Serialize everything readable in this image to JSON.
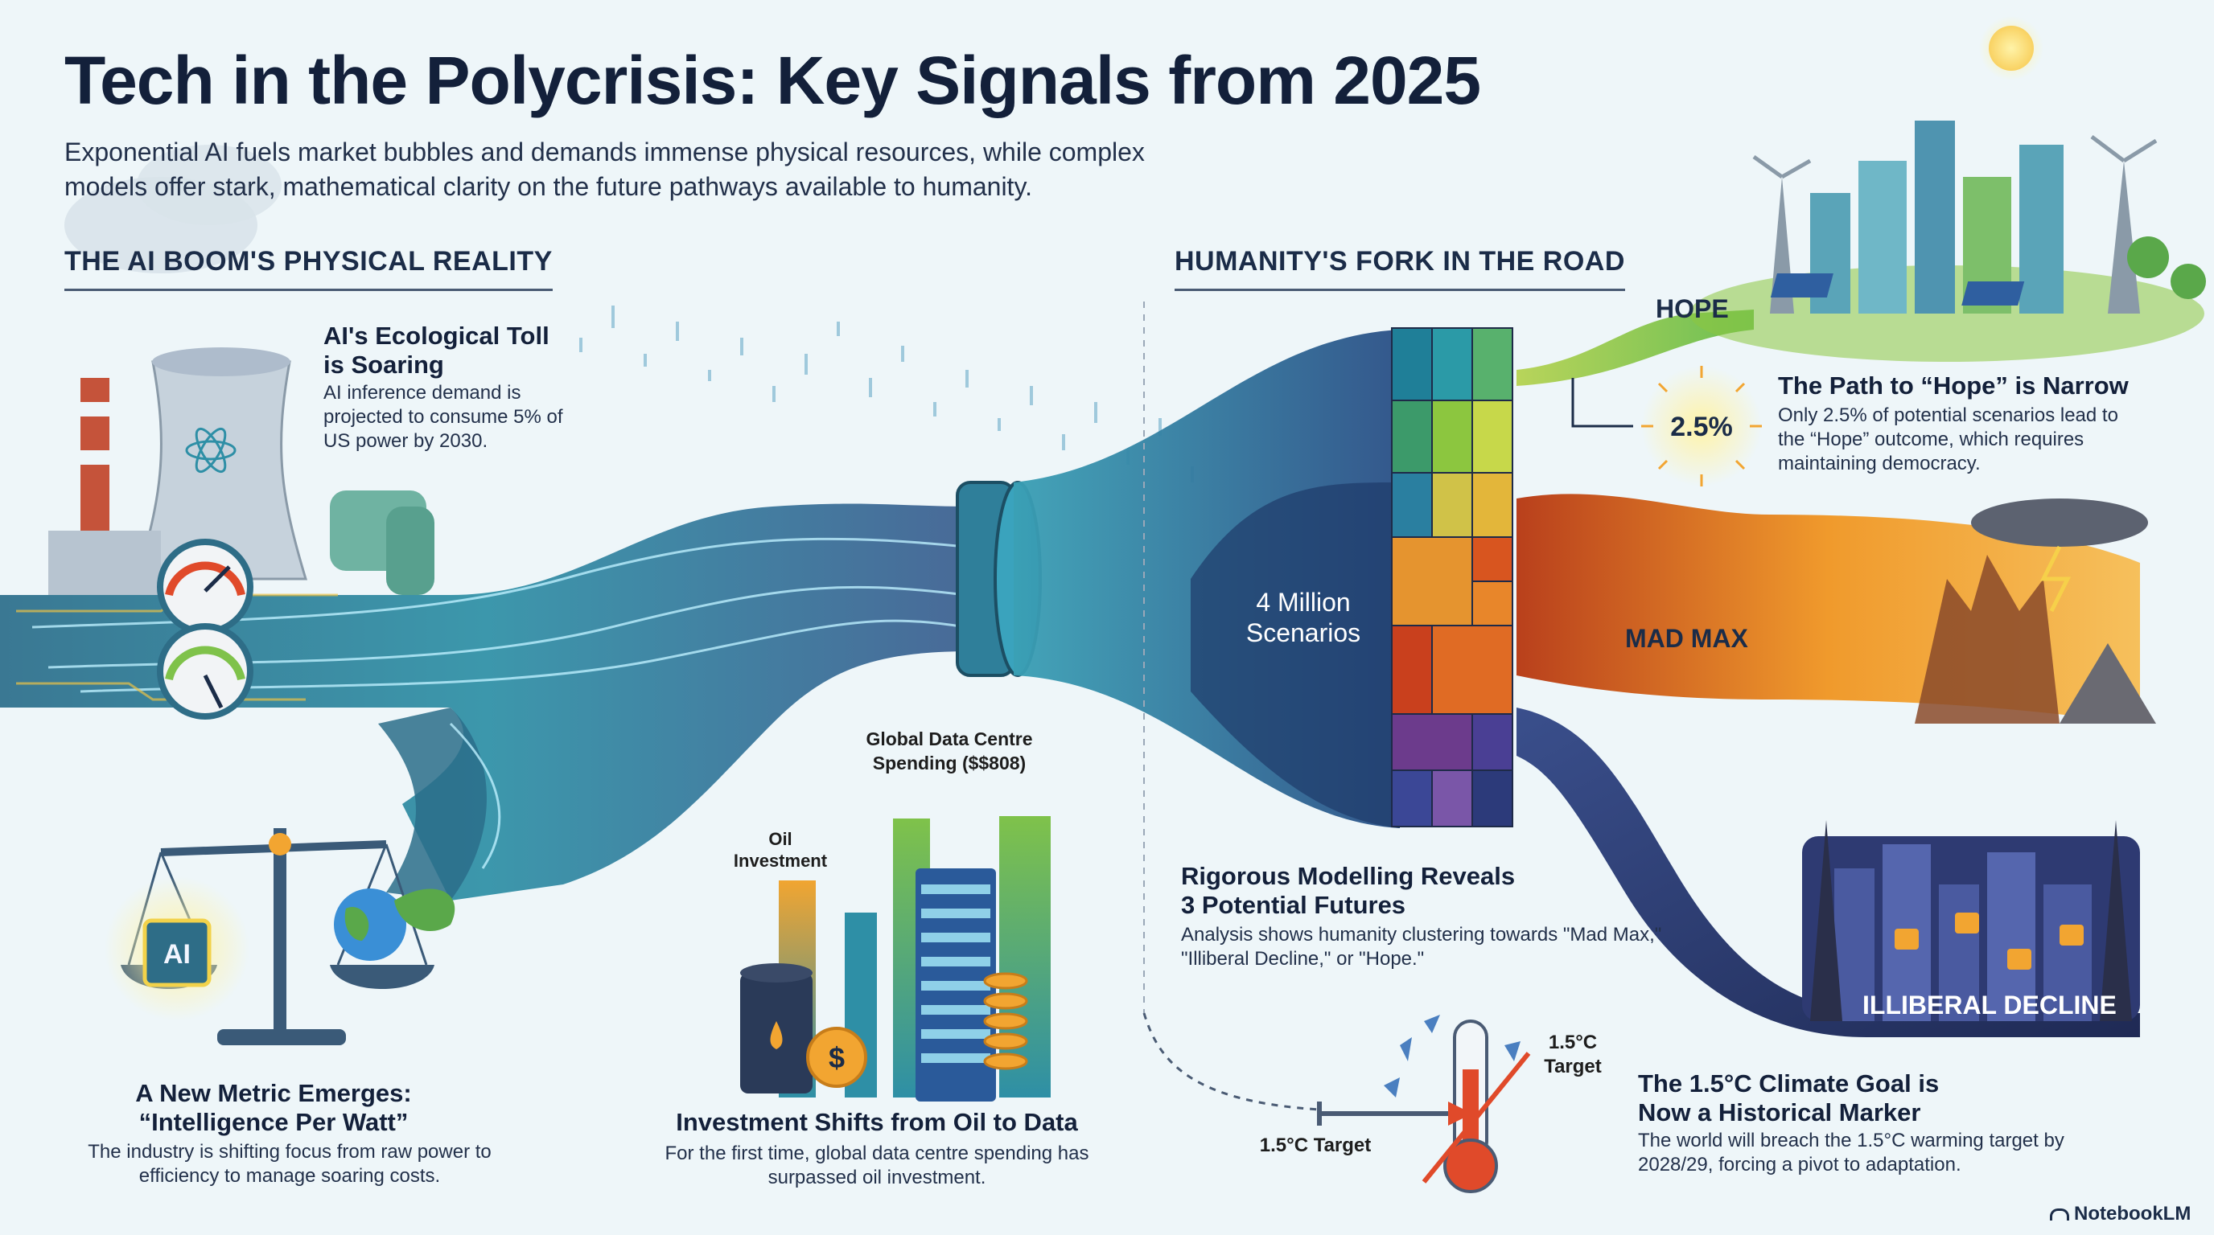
{
  "title": "Tech in the Polycrisis: Key Signals from 2025",
  "subtitle": "Exponential AI fuels market bubbles and demands immense physical resources, while complex models offer stark, mathematical clarity on the future pathways available to humanity.",
  "sections": {
    "left": "THE AI BOOM'S PHYSICAL REALITY",
    "right": "HUMANITY'S FORK IN THE ROAD"
  },
  "ecological": {
    "heading": "AI's Ecological Toll is Soaring",
    "body": "AI inference demand is projected to consume 5% of US power by 2030."
  },
  "metric": {
    "heading": "A New Metric Emerges: “Intelligence Per Watt”",
    "body": "The industry is shifting focus from raw power to efficiency to manage soaring costs.",
    "chip_label": "AI"
  },
  "investment": {
    "heading": "Investment Shifts from Oil to Data",
    "body": "For the first time, global data centre spending has surpassed oil investment.",
    "label_oil": "Oil Investment",
    "label_dc": "Global Data Centre Spending ($$808)"
  },
  "scenarios": {
    "count_label": "4 Million Scenarios",
    "heading": "Rigorous Modelling Reveals 3 Potential Futures",
    "body": "Analysis shows humanity clustering towards \"Mad Max,\" \"Illiberal Decline,\" or \"Hope.\"",
    "hope_label": "HOPE",
    "madmax_label": "MAD MAX",
    "illiberal_label": "ILLIBERAL DECLINE"
  },
  "hope_path": {
    "heading": "The Path to “Hope” is Narrow",
    "body": "Only 2.5% of potential scenarios lead to the “Hope” outcome, which requires maintaining democracy.",
    "stat": "2.5%"
  },
  "climate": {
    "heading": "The 1.5°C Climate Goal is Now a Historical Marker",
    "body": "The world will breach the 1.5°C warming target by 2028/29, forcing a pivot to adaptation.",
    "target_left": "1.5°C Target",
    "target_right": "1.5°C Target"
  },
  "brand": "NotebookLM",
  "colors": {
    "accent_teal": "#2e8fa6",
    "hope_green": "#8cc63f",
    "madmax_orange": "#e8862a",
    "illiberal_navy": "#2a3a6e"
  }
}
